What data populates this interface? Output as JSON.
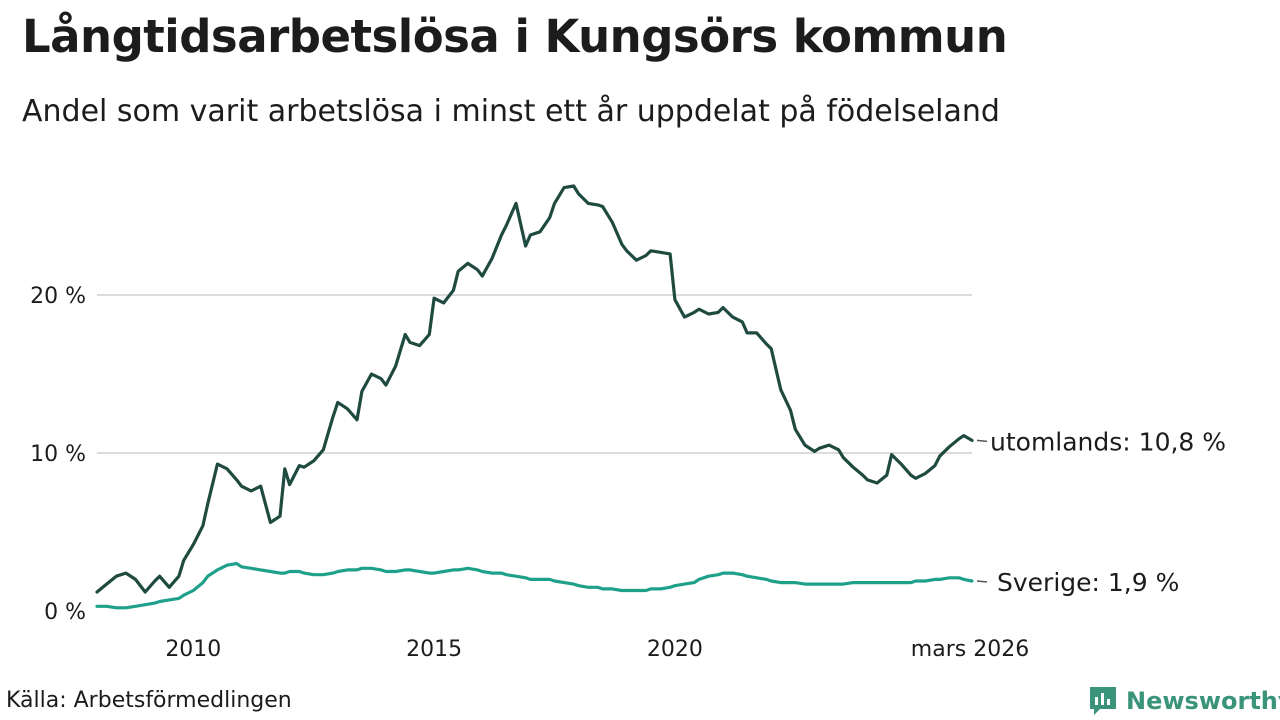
{
  "title": "Långtidsarbetslösa i Kungsörs kommun",
  "subtitle": "Andel som varit arbetslösa i minst ett år uppdelat på födelseland",
  "source": "Källa: Arbetsförmedlingen",
  "brand": {
    "name": "Newsworthy",
    "icon": "newsworthy-logo-icon",
    "color": "#3a9479"
  },
  "colors": {
    "utomlands": "#1f4a3f",
    "sverige": "#1fa08a",
    "grid": "#dcdcdc"
  },
  "chart_data": {
    "type": "line",
    "title": "Långtidsarbetslösa i Kungsörs kommun",
    "xlabel": "",
    "ylabel": "",
    "xlim": [
      2008.0,
      2026.17
    ],
    "ylim": [
      0,
      27
    ],
    "y_ticks": [
      {
        "value": 0,
        "label": "0 %"
      },
      {
        "value": 10,
        "label": "10 %"
      },
      {
        "value": 20,
        "label": "20 %"
      }
    ],
    "x_ticks": [
      {
        "value": 2010,
        "label": "2010"
      },
      {
        "value": 2015,
        "label": "2015"
      },
      {
        "value": 2020,
        "label": "2020"
      },
      {
        "value": 2026.17,
        "label": "mars 2026"
      }
    ],
    "grid": true,
    "series": [
      {
        "name": "utomlands",
        "label": "utomlands: 10,8 %",
        "last_value": 10.8,
        "x": [
          2008.0,
          2008.2,
          2008.4,
          2008.6,
          2008.8,
          2009.0,
          2009.2,
          2009.3,
          2009.5,
          2009.7,
          2009.8,
          2010.0,
          2010.2,
          2010.3,
          2010.5,
          2010.7,
          2010.9,
          2011.0,
          2011.2,
          2011.4,
          2011.6,
          2011.8,
          2011.9,
          2012.0,
          2012.2,
          2012.3,
          2012.5,
          2012.7,
          2012.9,
          2013.0,
          2013.2,
          2013.4,
          2013.5,
          2013.7,
          2013.9,
          2014.0,
          2014.2,
          2014.4,
          2014.5,
          2014.7,
          2014.9,
          2015.0,
          2015.2,
          2015.4,
          2015.5,
          2015.7,
          2015.9,
          2016.0,
          2016.2,
          2016.4,
          2016.5,
          2016.7,
          2016.9,
          2017.0,
          2017.2,
          2017.4,
          2017.5,
          2017.7,
          2017.9,
          2018.0,
          2018.2,
          2018.4,
          2018.5,
          2018.7,
          2018.9,
          2019.0,
          2019.2,
          2019.4,
          2019.5,
          2019.7,
          2019.9,
          2020.0,
          2020.2,
          2020.4,
          2020.5,
          2020.7,
          2020.9,
          2021.0,
          2021.2,
          2021.4,
          2021.5,
          2021.7,
          2021.9,
          2022.0,
          2022.2,
          2022.4,
          2022.5,
          2022.7,
          2022.9,
          2023.0,
          2023.2,
          2023.4,
          2023.5,
          2023.7,
          2023.9,
          2024.0,
          2024.2,
          2024.4,
          2024.5,
          2024.7,
          2024.9,
          2025.0,
          2025.2,
          2025.4,
          2025.5,
          2025.7,
          2025.9,
          2026.0,
          2026.17
        ],
        "values": [
          1.2,
          1.7,
          2.2,
          2.4,
          2.0,
          1.2,
          1.9,
          2.2,
          1.5,
          2.2,
          3.2,
          4.2,
          5.4,
          6.8,
          9.3,
          9.0,
          8.3,
          7.9,
          7.6,
          7.9,
          5.6,
          6.0,
          9.0,
          8.0,
          9.2,
          9.1,
          9.5,
          10.2,
          12.3,
          13.2,
          12.8,
          12.1,
          13.9,
          15.0,
          14.7,
          14.3,
          15.5,
          17.5,
          17.0,
          16.8,
          17.5,
          19.8,
          19.5,
          20.3,
          21.5,
          22.0,
          21.6,
          21.2,
          22.3,
          23.8,
          24.4,
          25.8,
          23.1,
          23.8,
          24.0,
          24.9,
          25.8,
          26.8,
          26.9,
          26.4,
          25.8,
          25.7,
          25.6,
          24.6,
          23.2,
          22.8,
          22.2,
          22.5,
          22.8,
          22.7,
          22.6,
          19.7,
          18.6,
          18.9,
          19.1,
          18.8,
          18.9,
          19.2,
          18.6,
          18.3,
          17.6,
          17.6,
          16.9,
          16.6,
          14.0,
          12.7,
          11.5,
          10.5,
          10.1,
          10.3,
          10.5,
          10.2,
          9.7,
          9.1,
          8.6,
          8.3,
          8.1,
          8.6,
          9.9,
          9.3,
          8.6,
          8.4,
          8.7,
          9.2,
          9.8,
          10.4,
          10.9,
          11.1,
          10.8
        ]
      },
      {
        "name": "Sverige",
        "label": "Sverige:  1,9 %",
        "last_value": 1.9,
        "x": [
          2008.0,
          2008.2,
          2008.4,
          2008.6,
          2008.8,
          2009.0,
          2009.2,
          2009.3,
          2009.5,
          2009.7,
          2009.8,
          2010.0,
          2010.2,
          2010.3,
          2010.5,
          2010.7,
          2010.9,
          2011.0,
          2011.2,
          2011.4,
          2011.6,
          2011.8,
          2011.9,
          2012.0,
          2012.2,
          2012.3,
          2012.5,
          2012.7,
          2012.9,
          2013.0,
          2013.2,
          2013.4,
          2013.5,
          2013.7,
          2013.9,
          2014.0,
          2014.2,
          2014.4,
          2014.5,
          2014.7,
          2014.9,
          2015.0,
          2015.2,
          2015.4,
          2015.5,
          2015.7,
          2015.9,
          2016.0,
          2016.2,
          2016.4,
          2016.5,
          2016.7,
          2016.9,
          2017.0,
          2017.2,
          2017.4,
          2017.5,
          2017.7,
          2017.9,
          2018.0,
          2018.2,
          2018.4,
          2018.5,
          2018.7,
          2018.9,
          2019.0,
          2019.2,
          2019.4,
          2019.5,
          2019.7,
          2019.9,
          2020.0,
          2020.2,
          2020.4,
          2020.5,
          2020.7,
          2020.9,
          2021.0,
          2021.2,
          2021.4,
          2021.5,
          2021.7,
          2021.9,
          2022.0,
          2022.2,
          2022.4,
          2022.5,
          2022.7,
          2022.9,
          2023.0,
          2023.2,
          2023.4,
          2023.5,
          2023.7,
          2023.9,
          2024.0,
          2024.2,
          2024.4,
          2024.5,
          2024.7,
          2024.9,
          2025.0,
          2025.2,
          2025.4,
          2025.5,
          2025.7,
          2025.9,
          2026.0,
          2026.17
        ],
        "values": [
          0.3,
          0.3,
          0.2,
          0.2,
          0.3,
          0.4,
          0.5,
          0.6,
          0.7,
          0.8,
          1.0,
          1.3,
          1.8,
          2.2,
          2.6,
          2.9,
          3.0,
          2.8,
          2.7,
          2.6,
          2.5,
          2.4,
          2.4,
          2.5,
          2.5,
          2.4,
          2.3,
          2.3,
          2.4,
          2.5,
          2.6,
          2.6,
          2.7,
          2.7,
          2.6,
          2.5,
          2.5,
          2.6,
          2.6,
          2.5,
          2.4,
          2.4,
          2.5,
          2.6,
          2.6,
          2.7,
          2.6,
          2.5,
          2.4,
          2.4,
          2.3,
          2.2,
          2.1,
          2.0,
          2.0,
          2.0,
          1.9,
          1.8,
          1.7,
          1.6,
          1.5,
          1.5,
          1.4,
          1.4,
          1.3,
          1.3,
          1.3,
          1.3,
          1.4,
          1.4,
          1.5,
          1.6,
          1.7,
          1.8,
          2.0,
          2.2,
          2.3,
          2.4,
          2.4,
          2.3,
          2.2,
          2.1,
          2.0,
          1.9,
          1.8,
          1.8,
          1.8,
          1.7,
          1.7,
          1.7,
          1.7,
          1.7,
          1.7,
          1.8,
          1.8,
          1.8,
          1.8,
          1.8,
          1.8,
          1.8,
          1.8,
          1.9,
          1.9,
          2.0,
          2.0,
          2.1,
          2.1,
          2.0,
          1.9
        ]
      }
    ]
  }
}
